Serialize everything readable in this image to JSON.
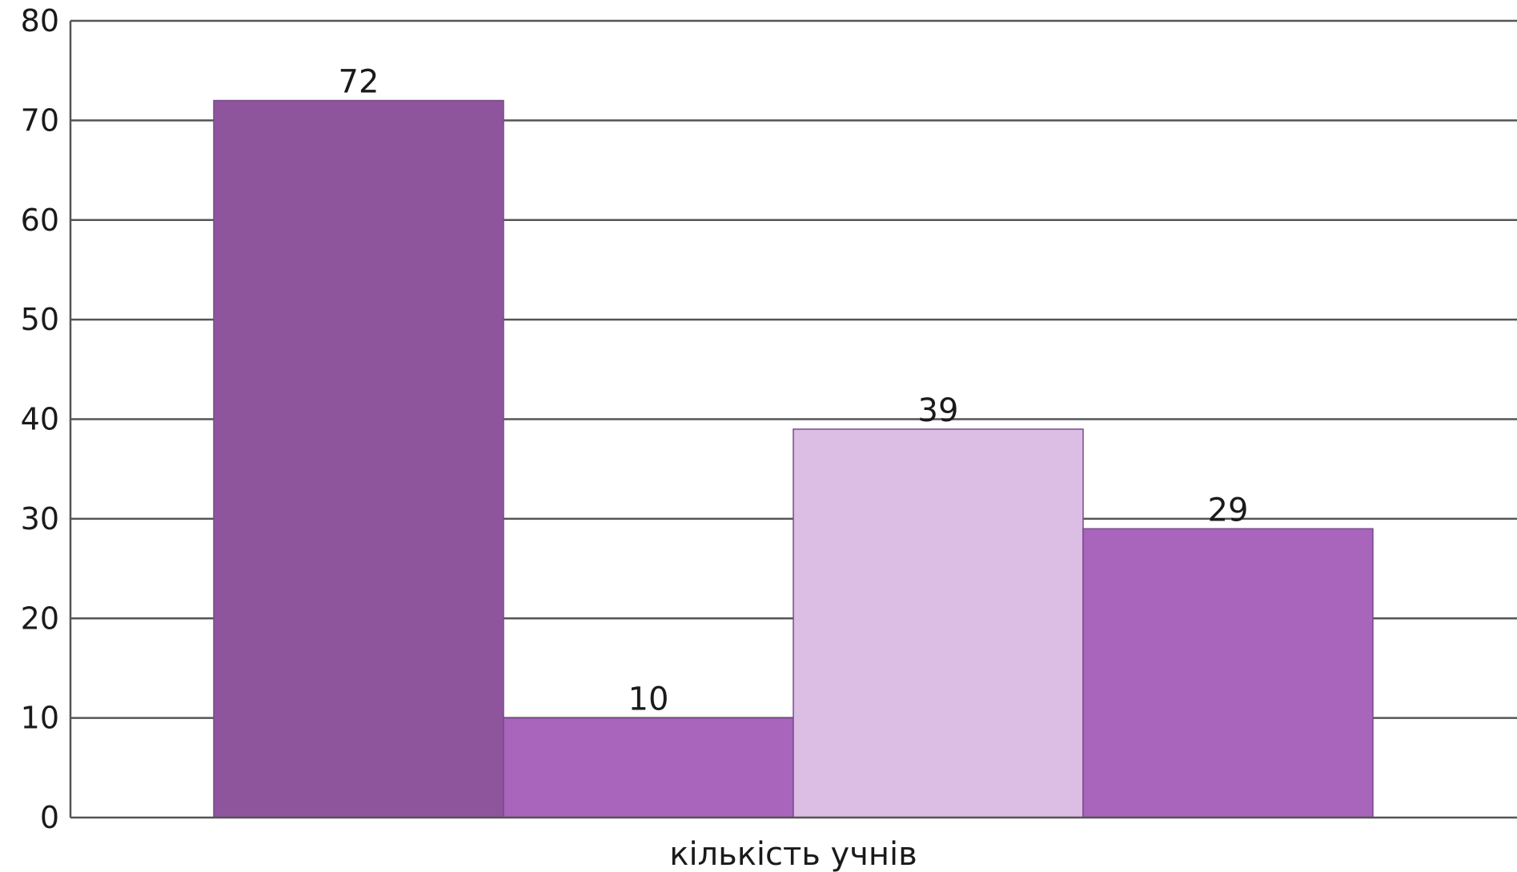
{
  "chart_data": {
    "type": "bar",
    "title": "",
    "xlabel": "кількість учнів",
    "ylabel": "",
    "ylim": [
      0,
      80
    ],
    "yticks": [
      0,
      10,
      20,
      30,
      40,
      50,
      60,
      70,
      80
    ],
    "grid": true,
    "legend": "none",
    "categories": [
      "кількість учнів"
    ],
    "series": [
      {
        "values": [
          72
        ],
        "color": "#8e559c"
      },
      {
        "values": [
          10
        ],
        "color": "#a964bb"
      },
      {
        "values": [
          39
        ],
        "color": "#dcbde3"
      },
      {
        "values": [
          29
        ],
        "color": "#a964bb"
      }
    ],
    "data_labels": [
      "72",
      "10",
      "39",
      "29"
    ]
  }
}
